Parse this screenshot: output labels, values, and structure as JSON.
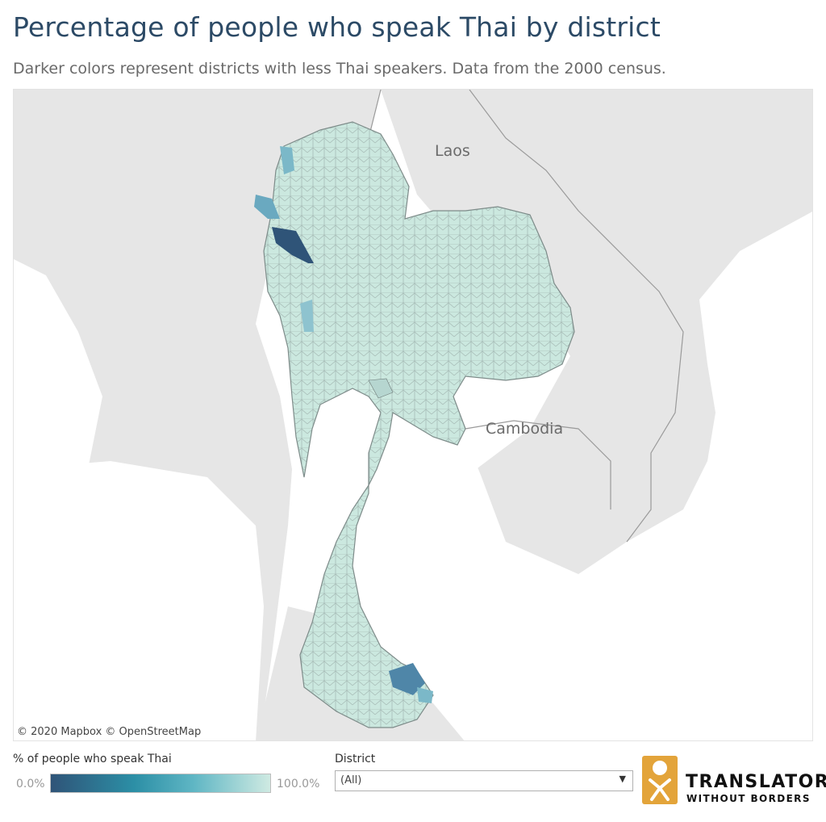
{
  "title": "Percentage of people who speak Thai by district",
  "subtitle": "Darker colors represent districts with less Thai speakers. Data from the 2000 census.",
  "map": {
    "labels": {
      "laos": "Laos",
      "cambodia": "Cambodia"
    },
    "attribution": "© 2020 Mapbox  © OpenStreetMap",
    "colors": {
      "land": "#e7e7e7",
      "water": "#ffffff",
      "district_fill": "#cbe8df",
      "district_border": "#7d8b89",
      "low_share": "#2f5478",
      "mid_share": "#7bb8c8"
    }
  },
  "legend": {
    "title": "% of people who speak Thai",
    "min_label": "0.0%",
    "max_label": "100.0%",
    "color_low": "#2f5478",
    "color_high": "#cfeae2"
  },
  "filter": {
    "label": "District",
    "value": "(All)",
    "arrow_icon": "chevron-down-icon"
  },
  "logo": {
    "line1": "TRANSLATORS",
    "line2": "WITHOUT BORDERS"
  }
}
